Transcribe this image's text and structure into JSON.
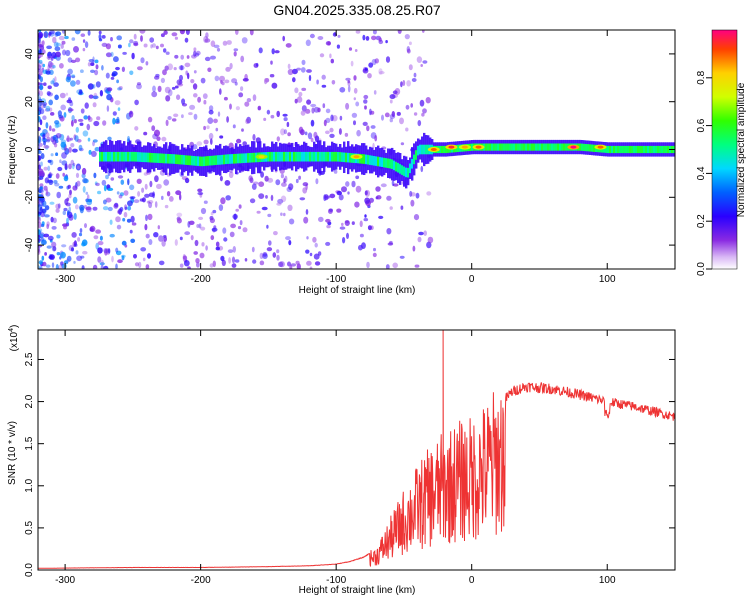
{
  "figure": {
    "title": "GN04.2025.335.08.25.R07"
  },
  "chart_data": [
    {
      "type": "heatmap",
      "title": "GN04.2025.335.08.25.R07",
      "xlabel": "Height of straight line (km)",
      "ylabel": "Frequency (Hz)",
      "xlim": [
        -320,
        150
      ],
      "ylim": [
        -50,
        50
      ],
      "xticks": [
        -300,
        -200,
        -100,
        0,
        100
      ],
      "yticks": [
        -40,
        -20,
        0,
        20,
        40
      ],
      "colorbar": {
        "label": "Normalized spectral amplitude",
        "range": [
          0.0,
          1.0
        ],
        "ticks": [
          0.0,
          0.2,
          0.4,
          0.6,
          0.8
        ]
      },
      "band_center_hz": [
        [
          -270,
          -3
        ],
        [
          -250,
          -3
        ],
        [
          -220,
          -4
        ],
        [
          -200,
          -5
        ],
        [
          -180,
          -4
        ],
        [
          -150,
          -3
        ],
        [
          -120,
          -3
        ],
        [
          -100,
          -3
        ],
        [
          -80,
          -4
        ],
        [
          -60,
          -6
        ],
        [
          -48,
          -10
        ],
        [
          -40,
          0
        ],
        [
          -20,
          0
        ],
        [
          0,
          1
        ],
        [
          20,
          1
        ],
        [
          40,
          1
        ],
        [
          60,
          1
        ],
        [
          80,
          1
        ],
        [
          100,
          0
        ],
        [
          150,
          0
        ]
      ],
      "hotspots": [
        {
          "x": 75,
          "y": 1,
          "value": 1.0
        },
        {
          "x": 5,
          "y": 1,
          "value": 0.9
        },
        {
          "x": -5,
          "y": 1,
          "value": 0.85
        },
        {
          "x": -28,
          "y": 0,
          "value": 0.9
        },
        {
          "x": -15,
          "y": 1,
          "value": 0.95
        },
        {
          "x": 95,
          "y": 1,
          "value": 0.9
        },
        {
          "x": -85,
          "y": -3,
          "value": 0.85
        },
        {
          "x": -155,
          "y": -3,
          "value": 0.8
        }
      ]
    },
    {
      "type": "line",
      "xlabel": "Height of straight line (km)",
      "ylabel": "SNR (10 * v/v)",
      "y_scale_label": "(x10^4)",
      "y_scale_base": "(x10",
      "y_scale_exp": "4",
      "y_scale_close": ")",
      "xlim": [
        -320,
        150
      ],
      "ylim": [
        0,
        2.85
      ],
      "xticks": [
        -300,
        -200,
        -100,
        0,
        100
      ],
      "yticks": [
        0.0,
        0.5,
        1.0,
        1.5,
        2.0,
        2.5
      ],
      "ytick_labels": [
        "0.0",
        "0.5",
        "1.0",
        "1.5",
        "2.0",
        "2.5"
      ],
      "series": [
        {
          "name": "SNR",
          "color": "#ee3333",
          "envelope": [
            [
              -320,
              0.02
            ],
            [
              -250,
              0.03
            ],
            [
              -200,
              0.03
            ],
            [
              -150,
              0.04
            ],
            [
              -120,
              0.05
            ],
            [
              -100,
              0.07
            ],
            [
              -90,
              0.1
            ],
            [
              -80,
              0.15
            ],
            [
              -70,
              0.25
            ],
            [
              -60,
              0.55
            ],
            [
              -50,
              0.85
            ],
            [
              -40,
              1.1
            ],
            [
              -30,
              1.3
            ],
            [
              -20,
              1.45
            ],
            [
              -10,
              1.55
            ],
            [
              0,
              1.6
            ],
            [
              10,
              1.75
            ],
            [
              20,
              1.95
            ],
            [
              30,
              2.12
            ],
            [
              40,
              2.18
            ],
            [
              60,
              2.15
            ],
            [
              80,
              2.08
            ],
            [
              100,
              2.0
            ],
            [
              120,
              1.94
            ],
            [
              150,
              1.82
            ]
          ],
          "spike": {
            "x": -21,
            "value": 2.85
          }
        }
      ]
    }
  ]
}
